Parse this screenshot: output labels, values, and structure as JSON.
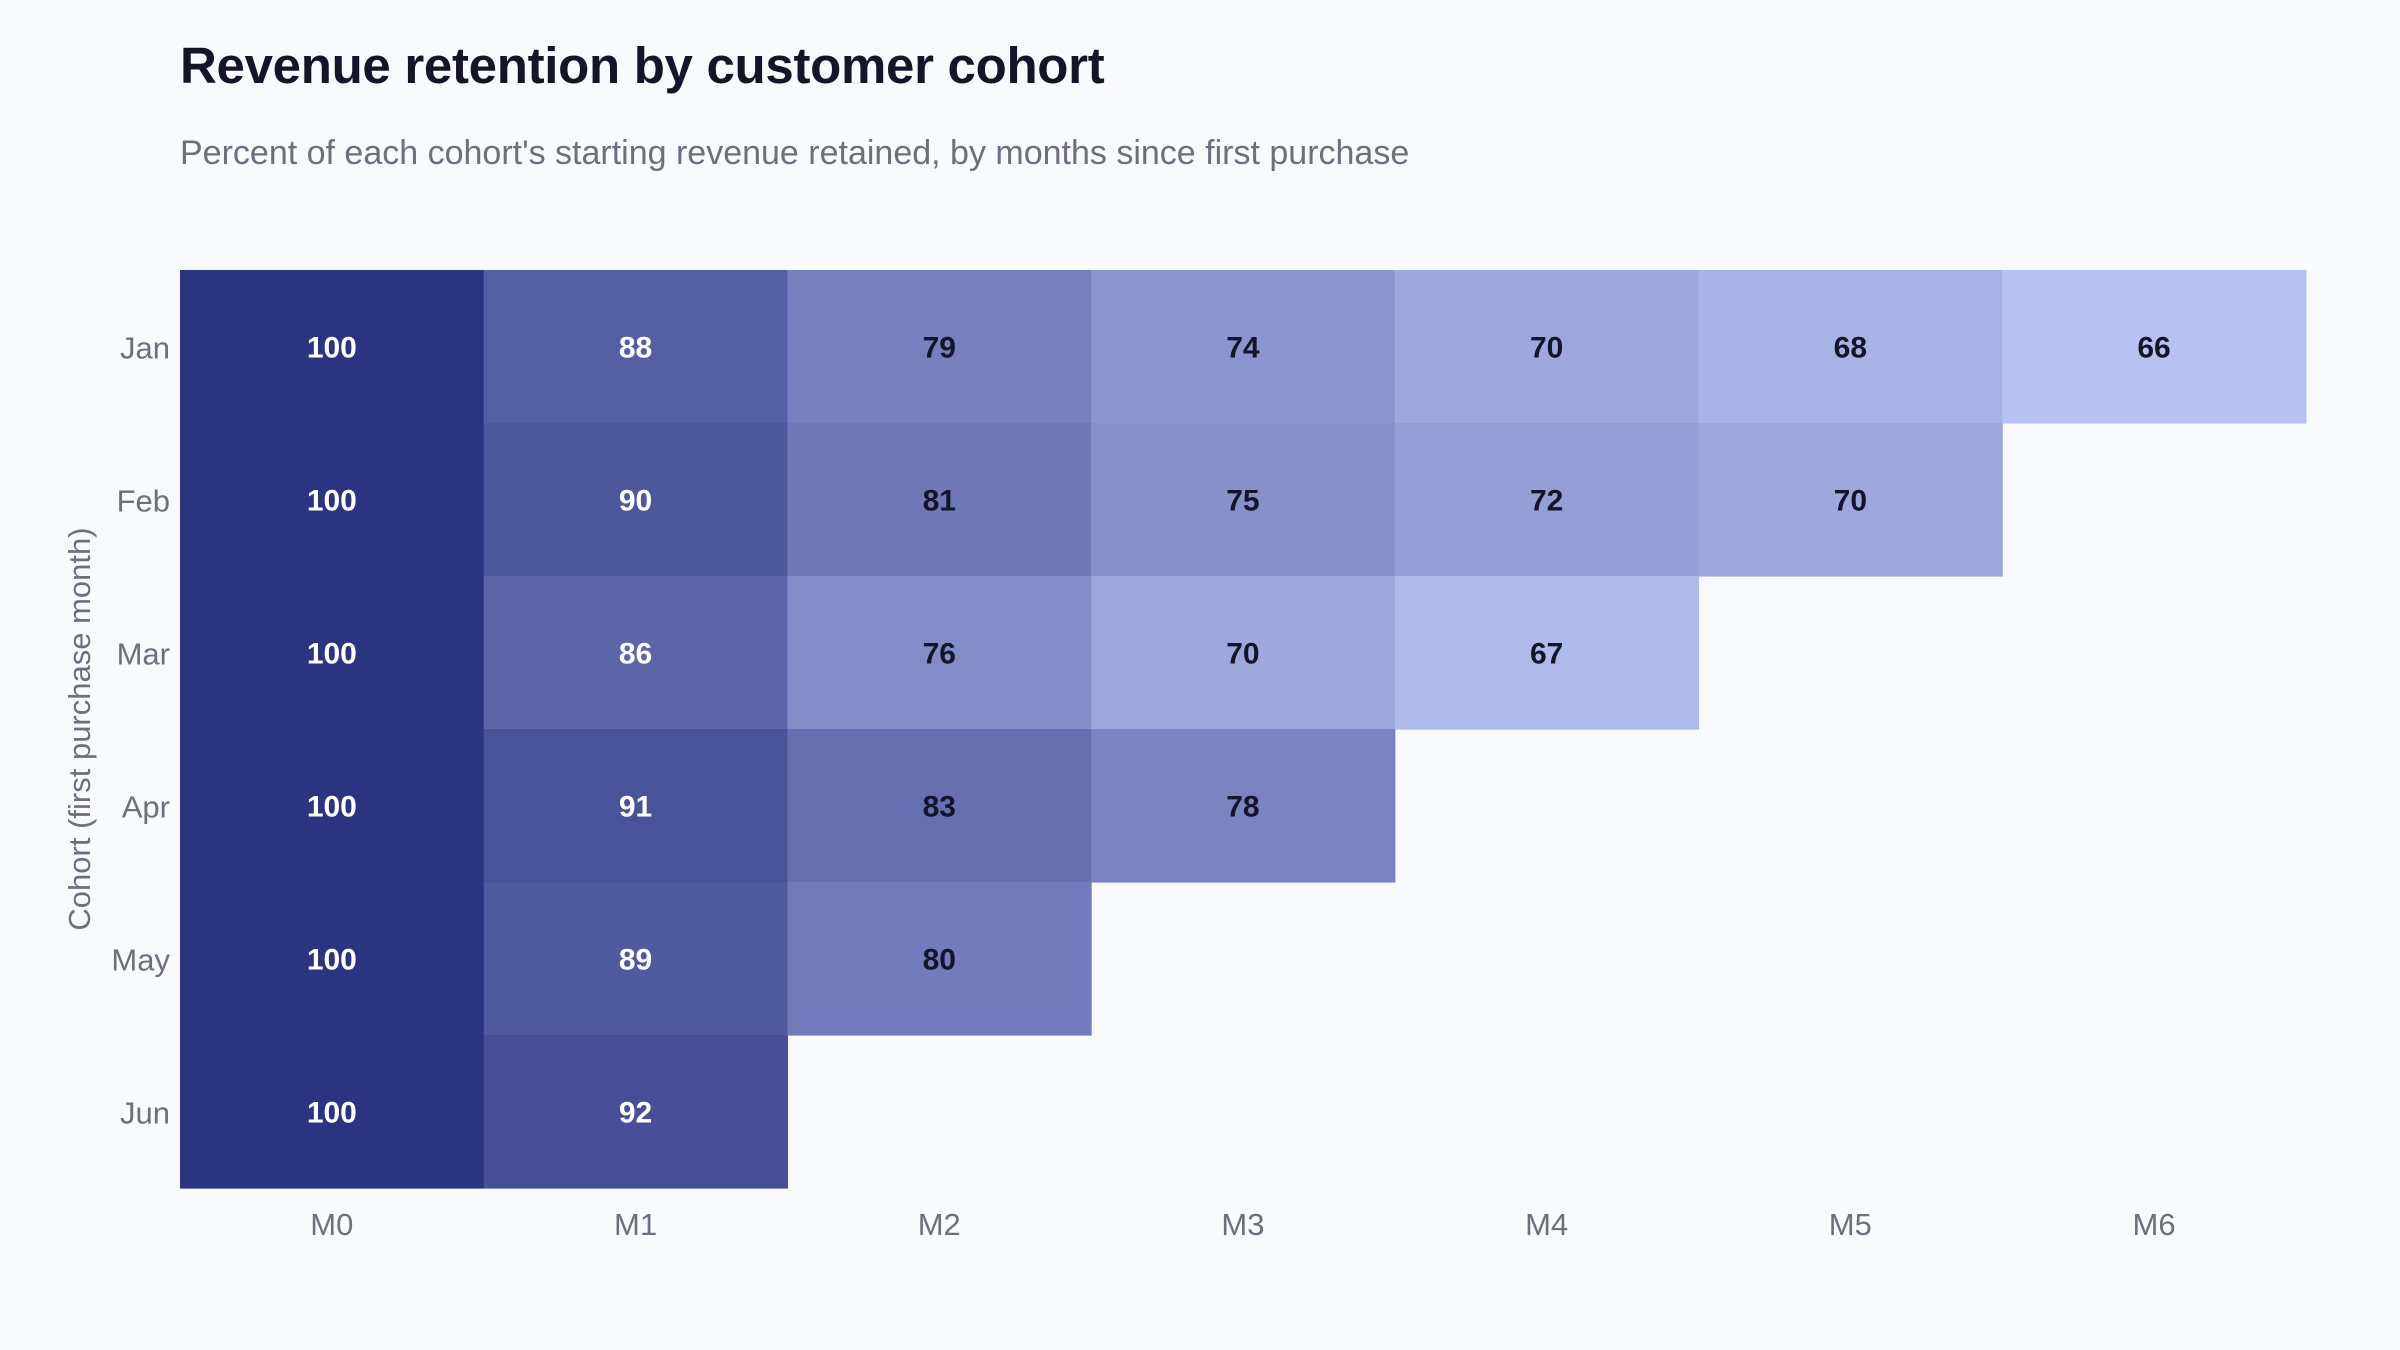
{
  "chart_data": {
    "type": "heatmap",
    "title": "Revenue retention by customer cohort",
    "subtitle": "Percent of each cohort's starting revenue retained, by months since first purchase",
    "xlabel": "",
    "ylabel": "Cohort (first purchase month)",
    "x_categories": [
      "M0",
      "M1",
      "M2",
      "M3",
      "M4",
      "M5",
      "M6"
    ],
    "y_categories": [
      "Jan",
      "Feb",
      "Mar",
      "Apr",
      "May",
      "Jun"
    ],
    "values": [
      [
        100,
        88,
        79,
        74,
        70,
        68,
        66
      ],
      [
        100,
        90,
        81,
        75,
        72,
        70,
        null
      ],
      [
        100,
        86,
        76,
        70,
        67,
        null,
        null
      ],
      [
        100,
        91,
        83,
        78,
        null,
        null,
        null
      ],
      [
        100,
        89,
        80,
        null,
        null,
        null,
        null
      ],
      [
        100,
        92,
        null,
        null,
        null,
        null,
        null
      ]
    ],
    "color_scale": {
      "low_value": 66,
      "high_value": 100,
      "low_color": "#b6c2f1",
      "high_color": "#2b3481"
    },
    "label_colors": {
      "dark_text": "#14142b",
      "light_text": "#ffffff"
    },
    "grid": false,
    "legend": "none"
  }
}
